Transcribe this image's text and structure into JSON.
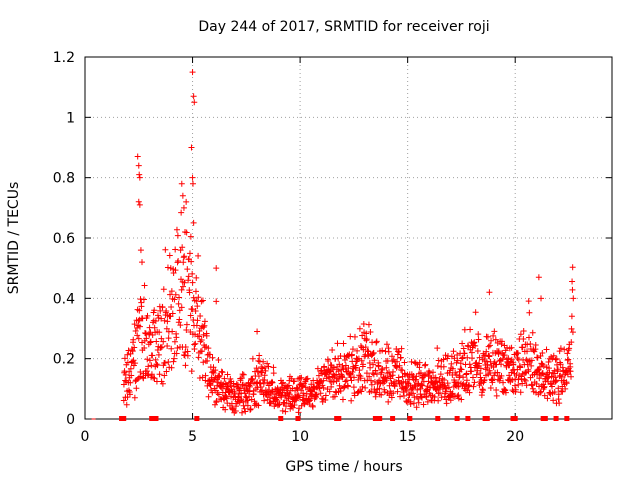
{
  "chart_data": {
    "type": "scatter",
    "title": "Day 244 of 2017, SRMTID for receiver roji",
    "xlabel": "GPS time / hours",
    "ylabel": "SRMTID / TECUs",
    "xlim": [
      0,
      24.5
    ],
    "ylim": [
      0,
      1.2
    ],
    "xticks": [
      "0",
      "5",
      "10",
      "15",
      "20"
    ],
    "xtick_values": [
      0,
      5,
      10,
      15,
      20
    ],
    "yticks": [
      "0",
      "0.2",
      "0.4",
      "0.6",
      "0.8",
      "1",
      "1.2"
    ],
    "ytick_values": [
      0,
      0.2,
      0.4,
      0.6,
      0.8,
      1.0,
      1.2
    ],
    "grid": true,
    "marker": "+",
    "color": "#ff0000",
    "series": [
      {
        "name": "SRMTID",
        "trend": [
          [
            1.8,
            0.12
          ],
          [
            2.0,
            0.16
          ],
          [
            2.3,
            0.2
          ],
          [
            2.5,
            0.28
          ],
          [
            2.8,
            0.26
          ],
          [
            3.2,
            0.24
          ],
          [
            3.6,
            0.3
          ],
          [
            4.0,
            0.34
          ],
          [
            4.4,
            0.42
          ],
          [
            4.8,
            0.44
          ],
          [
            5.2,
            0.34
          ],
          [
            5.6,
            0.22
          ],
          [
            6.0,
            0.14
          ],
          [
            6.5,
            0.1
          ],
          [
            7.0,
            0.08
          ],
          [
            7.5,
            0.09
          ],
          [
            8.0,
            0.14
          ],
          [
            8.5,
            0.12
          ],
          [
            9.0,
            0.08
          ],
          [
            9.5,
            0.08
          ],
          [
            10.0,
            0.1
          ],
          [
            10.5,
            0.08
          ],
          [
            11.0,
            0.12
          ],
          [
            11.5,
            0.18
          ],
          [
            12.0,
            0.16
          ],
          [
            12.5,
            0.15
          ],
          [
            13.0,
            0.22
          ],
          [
            13.5,
            0.16
          ],
          [
            14.0,
            0.18
          ],
          [
            14.5,
            0.14
          ],
          [
            15.0,
            0.12
          ],
          [
            15.5,
            0.13
          ],
          [
            16.0,
            0.12
          ],
          [
            16.5,
            0.14
          ],
          [
            17.0,
            0.12
          ],
          [
            17.5,
            0.15
          ],
          [
            18.0,
            0.22
          ],
          [
            18.5,
            0.18
          ],
          [
            19.0,
            0.2
          ],
          [
            19.5,
            0.18
          ],
          [
            20.0,
            0.16
          ],
          [
            20.5,
            0.25
          ],
          [
            21.0,
            0.17
          ],
          [
            21.5,
            0.14
          ],
          [
            22.0,
            0.15
          ],
          [
            22.5,
            0.2
          ],
          [
            22.7,
            0.3
          ]
        ],
        "highlights": [
          [
            2.45,
            0.87
          ],
          [
            2.5,
            0.84
          ],
          [
            2.52,
            0.81
          ],
          [
            2.55,
            0.8
          ],
          [
            2.5,
            0.72
          ],
          [
            2.55,
            0.71
          ],
          [
            2.6,
            0.56
          ],
          [
            2.65,
            0.52
          ],
          [
            4.5,
            0.78
          ],
          [
            4.55,
            0.74
          ],
          [
            4.6,
            0.7
          ],
          [
            4.65,
            0.62
          ],
          [
            4.95,
            0.9
          ],
          [
            5.0,
            1.15
          ],
          [
            5.05,
            1.07
          ],
          [
            5.08,
            1.05
          ],
          [
            5.0,
            0.8
          ],
          [
            5.02,
            0.78
          ],
          [
            5.05,
            0.65
          ],
          [
            6.1,
            0.5
          ],
          [
            6.1,
            0.39
          ],
          [
            8.0,
            0.29
          ],
          [
            18.8,
            0.42
          ],
          [
            21.1,
            0.47
          ],
          [
            21.2,
            0.4
          ],
          [
            22.7,
            0.4
          ]
        ]
      }
    ],
    "zero_markers_x": [
      1.7,
      1.8,
      3.1,
      3.3,
      5.2,
      9.1,
      9.9,
      11.7,
      11.8,
      13.5,
      13.7,
      14.3,
      15.1,
      16.4,
      17.3,
      17.8,
      18.6,
      18.7,
      19.9,
      20.0,
      21.3,
      21.4,
      21.9,
      22.4
    ]
  }
}
